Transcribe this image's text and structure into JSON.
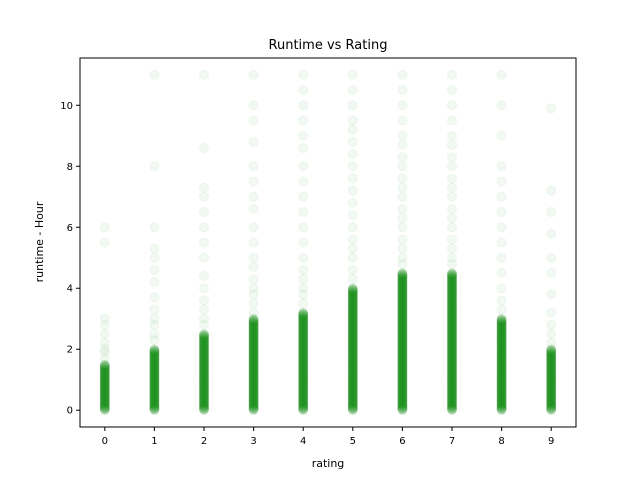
{
  "chart_data": {
    "type": "scatter",
    "title": "Runtime vs Rating",
    "xlabel": "rating",
    "ylabel": "runtime - Hour",
    "xlim": [
      -0.5,
      9.5
    ],
    "ylim": [
      -0.55,
      11.55
    ],
    "xticks": [
      0,
      1,
      2,
      3,
      4,
      5,
      6,
      7,
      8,
      9
    ],
    "yticks": [
      0,
      2,
      4,
      6,
      8,
      10
    ],
    "grid": false,
    "marker_color": "#008000",
    "marker_alpha": 0.05,
    "series": [
      {
        "points_by_rating": [
          {
            "x": 0,
            "dense_max": 1.5,
            "sparse": [
              1.7,
              1.9,
              2.0,
              2.2,
              2.5,
              2.8,
              3.0,
              5.5,
              6.0
            ]
          },
          {
            "x": 1,
            "dense_max": 2.0,
            "sparse": [
              2.3,
              2.5,
              2.8,
              3.0,
              3.3,
              3.7,
              4.2,
              4.6,
              5.0,
              5.3,
              6.0,
              8.0,
              11.0
            ]
          },
          {
            "x": 2,
            "dense_max": 2.5,
            "sparse": [
              2.8,
              3.0,
              3.3,
              3.6,
              4.0,
              4.4,
              5.0,
              5.5,
              6.0,
              6.5,
              7.0,
              7.3,
              8.6,
              11.0
            ]
          },
          {
            "x": 3,
            "dense_max": 3.0,
            "sparse": [
              3.2,
              3.5,
              3.8,
              4.0,
              4.3,
              4.7,
              5.0,
              5.5,
              6.0,
              6.6,
              7.0,
              7.5,
              8.0,
              8.8,
              9.5,
              10.0,
              11.0
            ]
          },
          {
            "x": 4,
            "dense_max": 3.2,
            "sparse": [
              3.5,
              3.8,
              4.0,
              4.3,
              4.6,
              5.0,
              5.5,
              6.0,
              6.5,
              7.0,
              7.5,
              8.0,
              8.6,
              9.0,
              9.5,
              10.0,
              10.5,
              11.0
            ]
          },
          {
            "x": 5,
            "dense_max": 4.0,
            "sparse": [
              4.3,
              4.6,
              5.0,
              5.3,
              5.6,
              6.0,
              6.4,
              6.8,
              7.2,
              7.6,
              8.0,
              8.4,
              8.8,
              9.2,
              9.5,
              10.0,
              10.5,
              11.0
            ]
          },
          {
            "x": 6,
            "dense_max": 4.5,
            "sparse": [
              4.8,
              5.0,
              5.3,
              5.6,
              6.0,
              6.3,
              6.6,
              7.0,
              7.3,
              7.6,
              8.0,
              8.3,
              8.7,
              9.0,
              9.5,
              10.0,
              10.5,
              11.0
            ]
          },
          {
            "x": 7,
            "dense_max": 4.5,
            "sparse": [
              4.8,
              5.0,
              5.3,
              5.6,
              6.0,
              6.3,
              6.6,
              7.0,
              7.3,
              7.6,
              8.0,
              8.3,
              8.7,
              9.0,
              9.5,
              10.0,
              10.5,
              11.0
            ]
          },
          {
            "x": 8,
            "dense_max": 3.0,
            "sparse": [
              3.3,
              3.6,
              4.0,
              4.5,
              5.0,
              5.5,
              6.0,
              6.5,
              7.0,
              7.5,
              8.0,
              9.0,
              10.0,
              11.0
            ]
          },
          {
            "x": 9,
            "dense_max": 2.0,
            "sparse": [
              2.2,
              2.5,
              2.8,
              3.2,
              3.8,
              4.5,
              5.0,
              5.8,
              6.5,
              7.2,
              9.9
            ]
          }
        ]
      }
    ]
  }
}
